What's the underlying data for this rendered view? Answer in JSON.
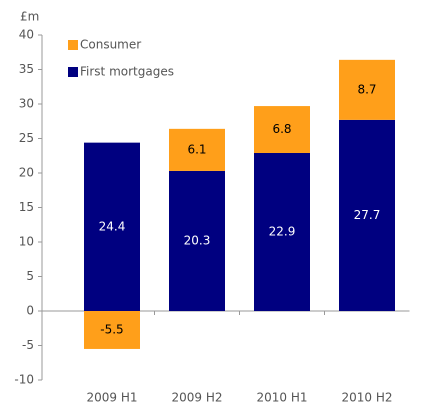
{
  "chart_data": {
    "type": "stacked_bar",
    "y_label": "£m",
    "categories": [
      "2009 H1",
      "2009 H2",
      "2010 H1",
      "2010 H2"
    ],
    "series": [
      {
        "name": "First mortgages",
        "color": "#000080",
        "values": [
          24.4,
          20.3,
          22.9,
          27.7
        ]
      },
      {
        "name": "Consumer",
        "color": "#ff9f1a",
        "values": [
          -5.5,
          6.1,
          6.8,
          8.7
        ]
      }
    ],
    "ylim": [
      -10,
      40
    ],
    "yticks": [
      -10,
      -5,
      0,
      5,
      10,
      15,
      20,
      25,
      30,
      35,
      40
    ],
    "legend": "upper left"
  }
}
